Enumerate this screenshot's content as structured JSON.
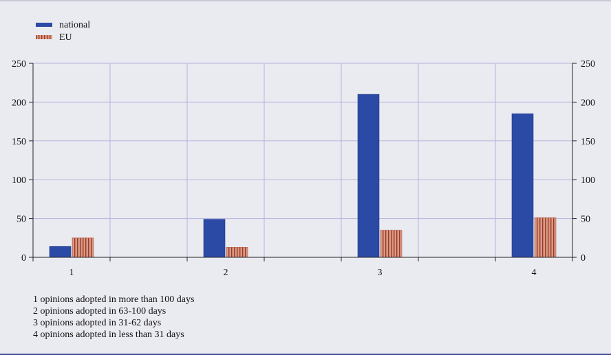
{
  "chart_data": {
    "type": "bar",
    "categories": [
      "1",
      "2",
      "3",
      "4"
    ],
    "series": [
      {
        "name": "national",
        "values": [
          14,
          49,
          210,
          185
        ]
      },
      {
        "name": "EU",
        "values": [
          25,
          13,
          35,
          51
        ]
      }
    ],
    "ylim": [
      0,
      250
    ],
    "yticks": [
      0,
      50,
      100,
      150,
      200,
      250
    ],
    "grid": true,
    "legend_position": "top-left",
    "axis_labels_both_sides": true,
    "colors": {
      "national": "#2b4aa5",
      "EU": "#d99a84",
      "EU_stripe": "#9a3a2a",
      "grid": "#b3b3dc"
    },
    "notes": [
      "1 opinions adopted in more than 100 days",
      "2 opinions adopted in 63-100 days",
      "3 opinions adopted in 31-62 days",
      "4 opinions adopted in less than 31 days"
    ]
  }
}
